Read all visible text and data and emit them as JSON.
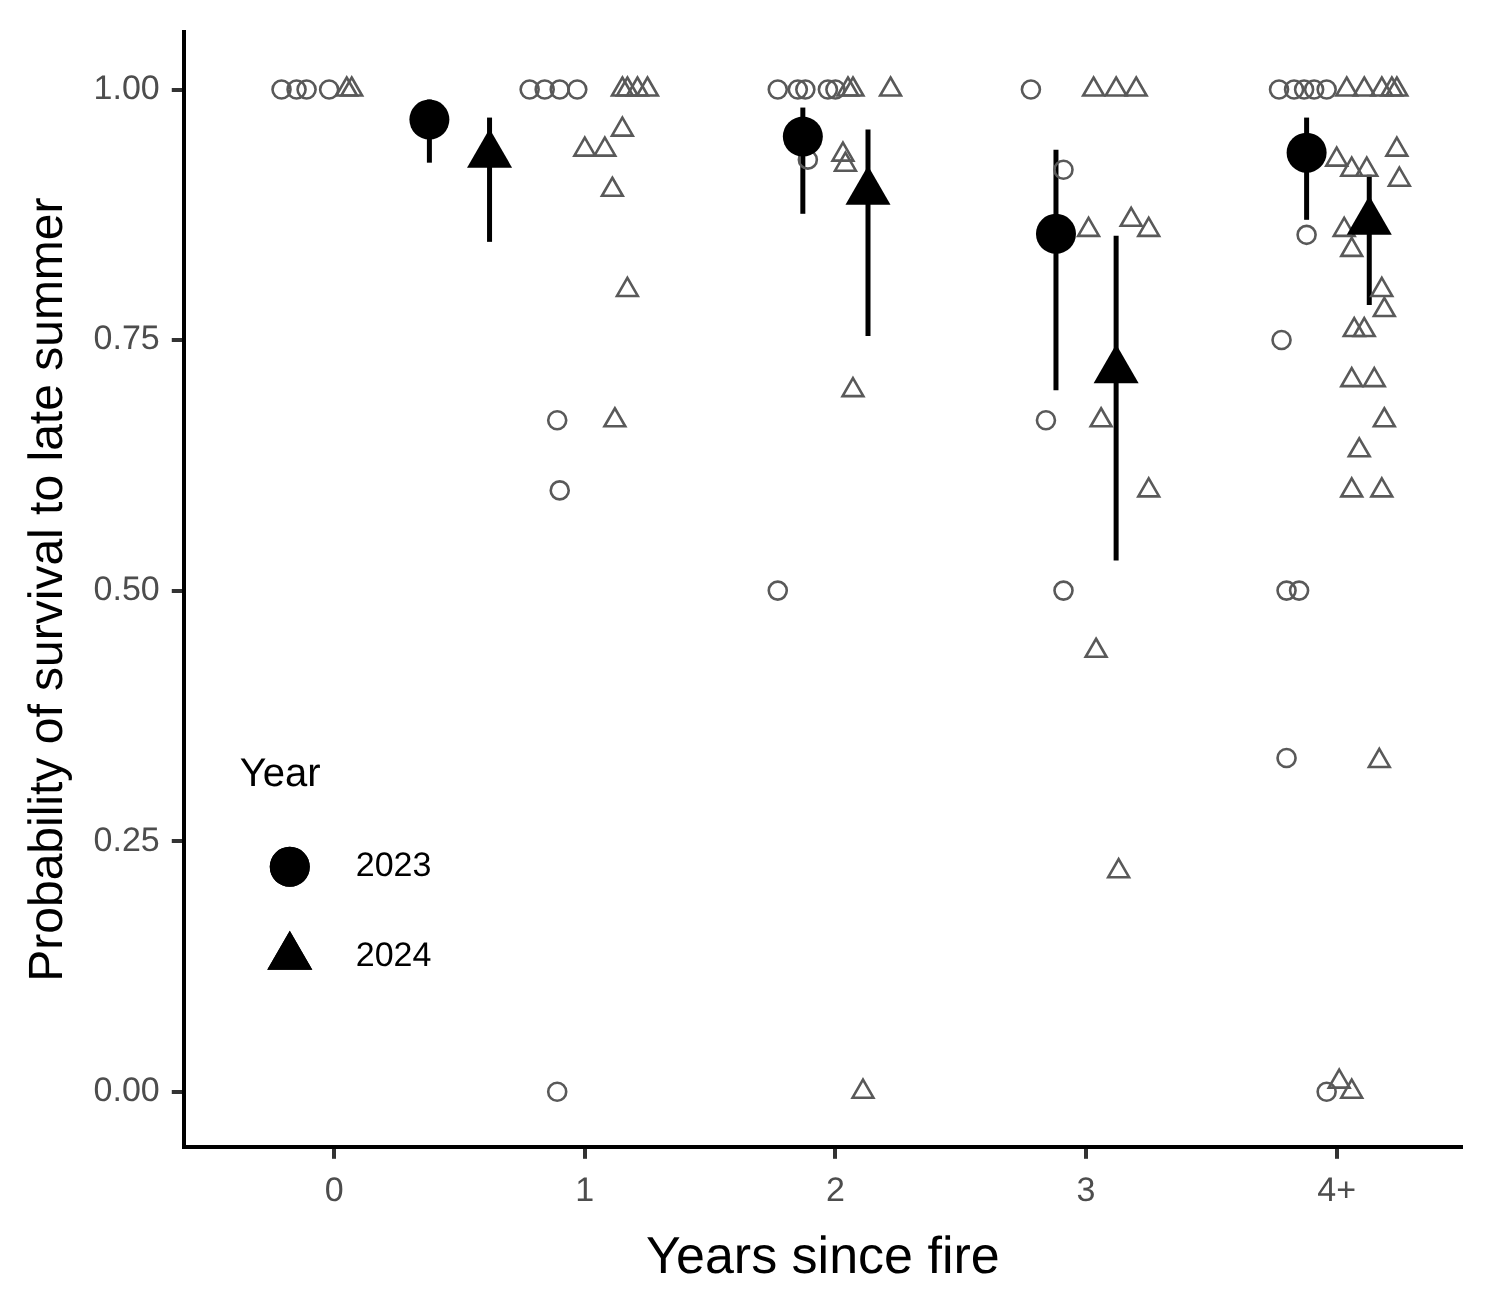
{
  "chart_data": {
    "type": "scatter",
    "xlabel": "Years since fire",
    "ylabel": "Probability of survival to late summer",
    "legend_title": "Year",
    "legend": "bottom left",
    "grid": false,
    "xlim": [
      -0.6,
      4.5
    ],
    "xticks": [
      0,
      1,
      2,
      3,
      {
        "value": 4,
        "label": "4+"
      }
    ],
    "ylim": [
      -0.055,
      1.057
    ],
    "yticks": [
      {
        "value": 0,
        "label": "0.00"
      },
      {
        "value": 0.25,
        "label": "0.25"
      },
      {
        "value": 0.5,
        "label": "0.50"
      },
      {
        "value": 0.75,
        "label": "0.75"
      },
      {
        "value": 1,
        "label": "1.00"
      }
    ],
    "series": [
      {
        "name": "2023",
        "marker": "circle",
        "color": "#000000",
        "x": [
          0.38,
          1.87,
          2.88,
          3.88
        ],
        "values": [
          0.97,
          0.953,
          0.856,
          0.937
        ],
        "errors": [
          [
            0.927,
            0.99
          ],
          [
            0.876,
            0.982
          ],
          [
            0.7,
            0.94
          ],
          [
            0.87,
            0.972
          ]
        ]
      },
      {
        "name": "2024",
        "marker": "triangle",
        "color": "#000000",
        "x": [
          0.62,
          2.13,
          3.12,
          4.13
        ],
        "values": [
          0.935,
          0.898,
          0.72,
          0.868
        ],
        "errors": [
          [
            0.848,
            0.972
          ],
          [
            0.754,
            0.96
          ],
          [
            0.53,
            0.854
          ],
          [
            0.785,
            0.915
          ]
        ]
      },
      {
        "marker": "circle",
        "color": "#595959",
        "x": [
          -0.21,
          -0.15,
          -0.11,
          -0.02,
          0.78,
          0.84,
          0.9,
          0.97,
          0.89,
          0.9,
          0.89,
          1.77,
          1.85,
          1.88,
          1.97,
          2.0,
          1.89,
          1.77,
          2.78,
          2.91,
          2.84,
          2.91,
          3.77,
          3.83,
          3.87,
          3.91,
          3.96,
          3.88,
          3.78,
          3.8,
          3.85,
          3.8,
          3.96
        ],
        "values": [
          1,
          1,
          1,
          1,
          1,
          1,
          1,
          1,
          0.67,
          0.6,
          0,
          1,
          1,
          1,
          1,
          1,
          0.93,
          0.5,
          1,
          0.92,
          0.67,
          0.5,
          1,
          1,
          1,
          1,
          1,
          0.855,
          0.75,
          0.5,
          0.5,
          0.333,
          0
        ]
      },
      {
        "marker": "triangle",
        "color": "#595959",
        "x": [
          0.05,
          0.07,
          1.15,
          1.17,
          1.21,
          1.25,
          1.15,
          1.0,
          1.08,
          1.11,
          1.17,
          1.12,
          2.05,
          2.07,
          2.22,
          2.03,
          2.04,
          2.07,
          2.11,
          3.03,
          3.12,
          3.2,
          3.01,
          3.18,
          3.25,
          3.06,
          3.25,
          3.04,
          3.13,
          4.04,
          4.11,
          4.18,
          4.22,
          4.24,
          4.0,
          4.06,
          4.12,
          4.24,
          4.25,
          4.03,
          4.06,
          4.18,
          4.19,
          4.07,
          4.11,
          4.06,
          4.15,
          4.19,
          4.09,
          4.06,
          4.18,
          4.17,
          4.01,
          4.06
        ],
        "values": [
          1,
          1,
          1,
          1,
          1,
          1,
          0.96,
          0.94,
          0.94,
          0.9,
          0.8,
          0.67,
          1,
          1,
          1,
          0.935,
          0.925,
          0.7,
          0,
          1,
          1,
          1,
          0.86,
          0.87,
          0.86,
          0.67,
          0.6,
          0.44,
          0.22,
          1,
          1,
          1,
          1,
          1,
          0.93,
          0.92,
          0.92,
          0.94,
          0.91,
          0.86,
          0.84,
          0.8,
          0.78,
          0.76,
          0.76,
          0.71,
          0.71,
          0.67,
          0.64,
          0.6,
          0.6,
          0.33,
          0.01,
          0
        ]
      }
    ]
  }
}
